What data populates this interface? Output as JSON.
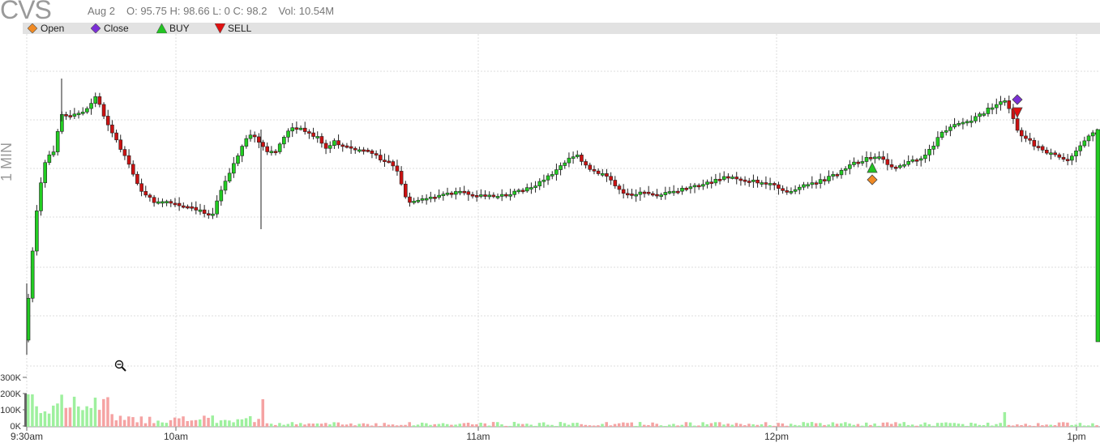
{
  "header": {
    "ticker": "CVS",
    "date": "Aug 2",
    "ohlc": "O: 95.75 H: 98.66 L: 0 C: 98.2",
    "volume": "Vol: 10.54M"
  },
  "legend": [
    {
      "label": "Open",
      "shape": "diamond",
      "color": "#f08a24"
    },
    {
      "label": "Close",
      "shape": "diamond",
      "color": "#7b2fd6"
    },
    {
      "label": "BUY",
      "shape": "triangle-up",
      "color": "#22c422"
    },
    {
      "label": "SELL",
      "shape": "triangle-down",
      "color": "#e01010"
    }
  ],
  "timeframe_label": "1 MIN",
  "icons": {
    "zoom_out": "zoom-out-icon"
  },
  "colors": {
    "up": "#22cc22",
    "down": "#cc1111",
    "vol_up": "#9ef09e",
    "vol_down": "#f5a3a3",
    "grid": "#dddddd"
  },
  "chart_data": {
    "type": "candlestick",
    "x_ticks": [
      "9:30am",
      "10am",
      "11am",
      "12pm",
      "1pm"
    ],
    "volume_ticks": [
      "300K",
      "200K",
      "100K",
      "0K"
    ],
    "volume_range": [
      0,
      300000
    ],
    "grid": true,
    "price_series_up_fraction_samples": [
      0.05,
      0.2,
      0.5,
      0.62,
      0.75,
      0.85,
      0.82,
      0.88,
      0.9,
      0.91,
      0.92,
      0.89,
      0.93,
      0.94,
      0.9,
      0.86,
      0.84,
      0.82,
      0.8,
      0.78,
      0.76,
      0.75,
      0.74,
      0.73,
      0.72,
      0.71,
      0.72,
      0.73,
      0.72,
      0.71,
      0.72,
      0.73,
      0.74,
      0.76,
      0.79,
      0.83,
      0.85,
      0.84,
      0.82,
      0.81,
      0.83,
      0.86,
      0.87,
      0.86,
      0.85,
      0.84,
      0.83,
      0.82,
      0.81,
      0.81,
      0.8,
      0.79,
      0.78,
      0.76,
      0.72
    ],
    "markers": [
      {
        "type": "BUY",
        "time": "12:27pm"
      },
      {
        "type": "Open",
        "time": "12:27pm"
      },
      {
        "type": "Close",
        "time": "12:57pm"
      },
      {
        "type": "SELL",
        "time": "12:57pm"
      }
    ]
  }
}
